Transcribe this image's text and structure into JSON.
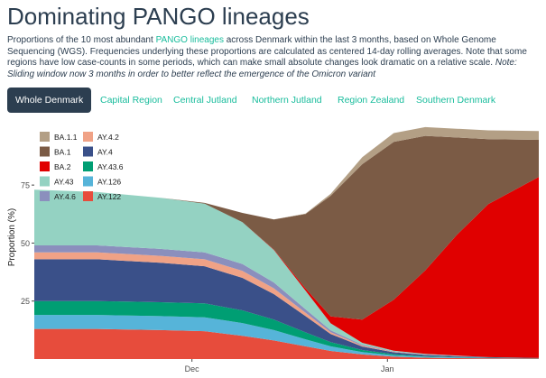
{
  "page": {
    "title": "Dominating PANGO lineages",
    "desc_part1": "Proportions of the 10 most abundant ",
    "desc_link": "PANGO lineages",
    "desc_part2": " across Denmark within the last 3 months, based on Whole Genome Sequencing (WGS). Frequencies underlying these proportions are calculated as centered 14-day rolling averages. Note that some regions have low case-counts in some periods, which can make small absolute changes look dramatic on a relative scale. ",
    "desc_note": "Note: Sliding window now 3 months in order to better reflect the emergence of the Omicron variant"
  },
  "tabs": [
    {
      "label": "Whole Denmark",
      "active": true
    },
    {
      "label": "Capital Region",
      "active": false
    },
    {
      "label": "Central Jutland",
      "active": false
    },
    {
      "label": "Northern Jutland",
      "active": false
    },
    {
      "label": "Region Zealand",
      "active": false
    },
    {
      "label": "Southern Denmark",
      "active": false
    }
  ],
  "chart_data": {
    "type": "area",
    "stacked": true,
    "ylabel": "Proportion (%)",
    "xlabel": "",
    "yticks": [
      25,
      50,
      75
    ],
    "ylim": [
      0,
      105
    ],
    "x_tick_labels": [
      {
        "label": "Dec",
        "at": "2021-12-01"
      },
      {
        "label": "Jan",
        "at": "2022-01-01"
      }
    ],
    "x_start": "2021-11-06",
    "x_end": "2022-01-25",
    "x": [
      "2021-11-06",
      "2021-11-16",
      "2021-11-26",
      "2021-12-03",
      "2021-12-09",
      "2021-12-14",
      "2021-12-19",
      "2021-12-23",
      "2021-12-28",
      "2022-01-02",
      "2022-01-07",
      "2022-01-12",
      "2022-01-17",
      "2022-01-25"
    ],
    "grid": false,
    "legend": "top-left",
    "series": [
      {
        "name": "AY.122",
        "color": "#e74c3c",
        "values": [
          13,
          13,
          12.5,
          12,
          10,
          8,
          5.5,
          3.5,
          2,
          1,
          0.6,
          0.4,
          0.3,
          0.2
        ]
      },
      {
        "name": "AY.126",
        "color": "#56b4d9",
        "values": [
          6,
          6,
          6,
          6,
          5.5,
          4.5,
          3,
          2,
          1,
          0.6,
          0.4,
          0.3,
          0.2,
          0.1
        ]
      },
      {
        "name": "AY.43.6",
        "color": "#009e73",
        "values": [
          6,
          6,
          6,
          6,
          5.5,
          4.5,
          3,
          1.8,
          0.9,
          0.5,
          0.3,
          0.2,
          0.1,
          0.1
        ]
      },
      {
        "name": "AY.4",
        "color": "#3a5089",
        "values": [
          18,
          18,
          17,
          16,
          14,
          11,
          7,
          3.5,
          1.5,
          0.8,
          0.5,
          0.3,
          0.2,
          0.1
        ]
      },
      {
        "name": "AY.4.2",
        "color": "#f0a286",
        "values": [
          3,
          3,
          3,
          3,
          3,
          2.5,
          1.5,
          0.8,
          0.4,
          0.2,
          0.1,
          0.1,
          0,
          0
        ]
      },
      {
        "name": "AY.4.6",
        "color": "#8b8fbd",
        "values": [
          3,
          3,
          3,
          3,
          3,
          2.5,
          1.5,
          0.8,
          0.4,
          0.2,
          0.1,
          0.1,
          0,
          0
        ]
      },
      {
        "name": "AY.43",
        "color": "#94d2c2",
        "values": [
          24,
          23,
          22,
          21,
          18,
          14,
          8,
          3,
          0.8,
          0.3,
          0.2,
          0.1,
          0,
          0
        ]
      },
      {
        "name": "BA.2",
        "color": "#e00000",
        "values": [
          0,
          0,
          0,
          0,
          0,
          0.2,
          1,
          3,
          10,
          22,
          36,
          52,
          66,
          78
        ]
      },
      {
        "name": "BA.1",
        "color": "#7b5b45",
        "values": [
          0,
          0,
          0,
          0.3,
          4,
          13,
          32,
          52,
          67,
          68,
          58,
          42,
          28,
          16
        ]
      },
      {
        "name": "BA.1.1",
        "color": "#b39f85",
        "values": [
          0,
          0,
          0,
          0,
          0,
          0,
          0.2,
          0.8,
          3,
          3.8,
          3.8,
          3.8,
          3.8,
          3.8
        ]
      }
    ],
    "legend_order": [
      "BA.1.1",
      "AY.4.2",
      "BA.1",
      "AY.4",
      "BA.2",
      "AY.43.6",
      "AY.43",
      "AY.126",
      "AY.4.6",
      "AY.122"
    ]
  }
}
